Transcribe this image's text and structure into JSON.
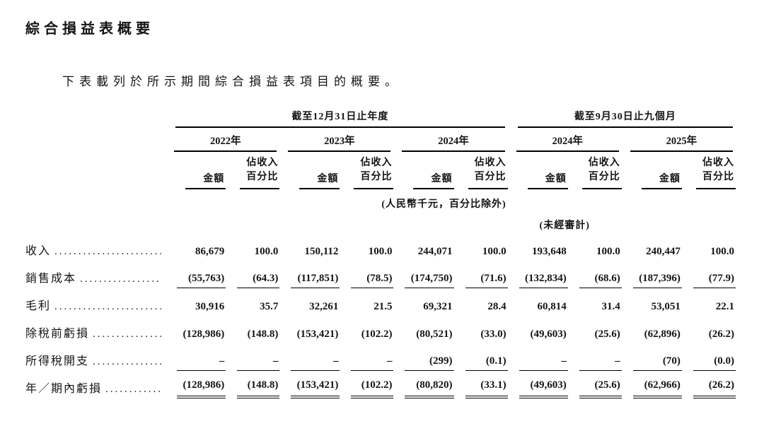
{
  "page": {
    "title": "綜合損益表概要",
    "intro": "下表載列於所示期間綜合損益表項目的概要。"
  },
  "table": {
    "groups": [
      {
        "label": "截至12月31日止年度"
      },
      {
        "label": "截至9月30日止九個月"
      }
    ],
    "years": [
      {
        "label": "2022年"
      },
      {
        "label": "2023年"
      },
      {
        "label": "2024年"
      },
      {
        "label": "2024年"
      },
      {
        "label": "2025年"
      }
    ],
    "subheaders": {
      "amount": "金額",
      "pct_line1": "佔收入",
      "pct_line2": "百分比"
    },
    "notes": {
      "units": "(人民幣千元，百分比除外)",
      "unaudited": "(未經審計)"
    },
    "rows": [
      {
        "label": "收入",
        "values": [
          "86,679",
          "100.0",
          "150,112",
          "100.0",
          "244,071",
          "100.0",
          "193,648",
          "100.0",
          "240,447",
          "100.0"
        ],
        "rule": "none"
      },
      {
        "label": "銷售成本",
        "values": [
          "(55,763)",
          "(64.3)",
          "(117,851)",
          "(78.5)",
          "(174,750)",
          "(71.6)",
          "(132,834)",
          "(68.6)",
          "(187,396)",
          "(77.9)"
        ],
        "rule": "single"
      },
      {
        "label": "毛利",
        "values": [
          "30,916",
          "35.7",
          "32,261",
          "21.5",
          "69,321",
          "28.4",
          "60,814",
          "31.4",
          "53,051",
          "22.1"
        ],
        "rule": "none"
      },
      {
        "label": "除稅前虧損",
        "values": [
          "(128,986)",
          "(148.8)",
          "(153,421)",
          "(102.2)",
          "(80,521)",
          "(33.0)",
          "(49,603)",
          "(25.6)",
          "(62,896)",
          "(26.2)"
        ],
        "rule": "none"
      },
      {
        "label": "所得稅開支",
        "values": [
          "–",
          "–",
          "–",
          "–",
          "(299)",
          "(0.1)",
          "–",
          "–",
          "(70)",
          "(0.0)"
        ],
        "rule": "single"
      },
      {
        "label": "年／期內虧損",
        "values": [
          "(128,986)",
          "(148.8)",
          "(153,421)",
          "(102.2)",
          "(80,820)",
          "(33.1)",
          "(49,603)",
          "(25.6)",
          "(62,966)",
          "(26.2)"
        ],
        "rule": "double"
      }
    ]
  }
}
